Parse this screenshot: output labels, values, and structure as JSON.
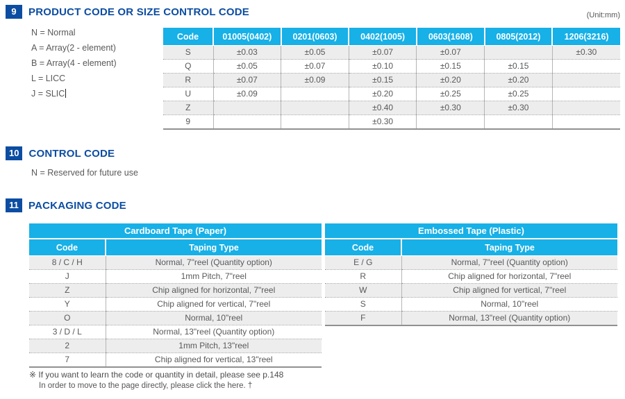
{
  "page": {
    "unit_label": "(Unit:mm)"
  },
  "colors": {
    "accent_cyan": "#17b0e7",
    "heading_blue": "#0c4da2",
    "stripe_gray": "#ededed",
    "text_gray": "#58595b"
  },
  "sections": {
    "product_code": {
      "number": "9",
      "title": "PRODUCT CODE OR SIZE CONTROL CODE",
      "legend": {
        "items": [
          "N = Normal",
          "A = Array(2 - element)",
          "B = Array(4 - element)",
          "L = LICC",
          "J = SLIC"
        ]
      },
      "table": {
        "headers": [
          "Code",
          "01005(0402)",
          "0201(0603)",
          "0402(1005)",
          "0603(1608)",
          "0805(2012)",
          "1206(3216)"
        ],
        "rows": [
          [
            "S",
            "±0.03",
            "±0.05",
            "±0.07",
            "±0.07",
            "",
            "±0.30"
          ],
          [
            "Q",
            "±0.05",
            "±0.07",
            "±0.10",
            "±0.15",
            "±0.15",
            ""
          ],
          [
            "R",
            "±0.07",
            "±0.09",
            "±0.15",
            "±0.20",
            "±0.20",
            ""
          ],
          [
            "U",
            "±0.09",
            "",
            "±0.20",
            "±0.25",
            "±0.25",
            ""
          ],
          [
            "Z",
            "",
            "",
            "±0.40",
            "±0.30",
            "±0.30",
            ""
          ],
          [
            "9",
            "",
            "",
            "±0.30",
            "",
            "",
            ""
          ]
        ]
      }
    },
    "control_code": {
      "number": "10",
      "title": "CONTROL CODE",
      "legend": "N = Reserved for future use"
    },
    "packaging_code": {
      "number": "11",
      "title": "PACKAGING CODE",
      "cardboard": {
        "title": "Cardboard Tape (Paper)",
        "headers": [
          "Code",
          "Taping Type"
        ],
        "rows": [
          [
            "8 / C / H",
            "Normal, 7\"reel (Quantity option)"
          ],
          [
            "J",
            "1mm Pitch, 7\"reel"
          ],
          [
            "Z",
            "Chip aligned for horizontal, 7\"reel"
          ],
          [
            "Y",
            "Chip aligned for vertical, 7\"reel"
          ],
          [
            "O",
            "Normal, 10\"reel"
          ],
          [
            "3 / D / L",
            "Normal, 13\"reel (Quantity option)"
          ],
          [
            "2",
            "1mm Pitch, 13\"reel"
          ],
          [
            "7",
            "Chip aligned for vertical, 13\"reel"
          ]
        ]
      },
      "embossed": {
        "title": "Embossed Tape  (Plastic)",
        "headers": [
          "Code",
          "Taping Type"
        ],
        "rows": [
          [
            "E / G",
            "Normal, 7\"reel (Quantity option)"
          ],
          [
            "R",
            "Chip aligned for horizontal, 7\"reel"
          ],
          [
            "W",
            "Chip aligned for vertical, 7\"reel"
          ],
          [
            "S",
            "Normal, 10\"reel"
          ],
          [
            "F",
            "Normal, 13\"reel (Quantity option)"
          ]
        ]
      },
      "footnotes": {
        "line1": "※ If you want to learn the code or quantity in detail, please see p.148",
        "line2": "In order to move to the page directly, please click the here. †"
      }
    }
  }
}
